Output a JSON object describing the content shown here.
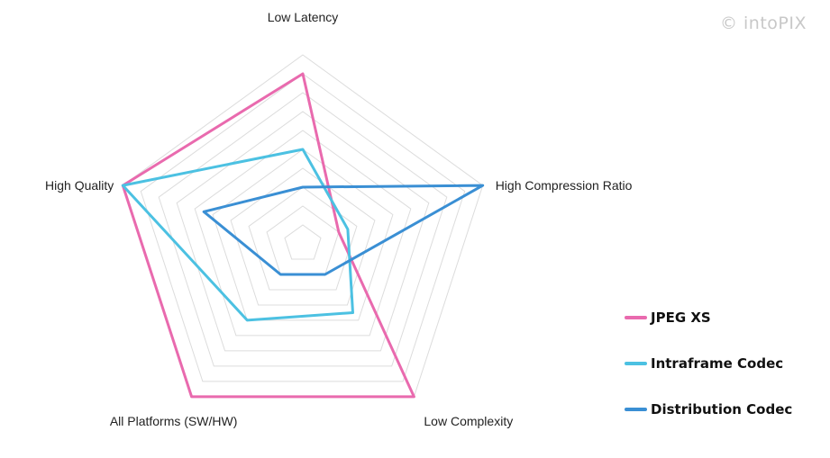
{
  "watermark": "© intoPIX",
  "chart_data": {
    "type": "radar",
    "axes": [
      "Low Latency",
      "High Compression Ratio",
      "Low Complexity",
      "All Platforms (SW/HW)",
      "High Quality"
    ],
    "levels": 10,
    "range": [
      0,
      10
    ],
    "series": [
      {
        "name": "JPEG XS",
        "color": "#e96aae",
        "values": [
          9,
          2,
          10,
          10,
          10
        ]
      },
      {
        "name": "Intraframe Codec",
        "color": "#4cc1e2",
        "values": [
          5,
          2.5,
          4.5,
          5,
          10
        ]
      },
      {
        "name": "Distribution Codec",
        "color": "#3a8fd4",
        "values": [
          3,
          10,
          2,
          2,
          5.5
        ]
      }
    ]
  }
}
